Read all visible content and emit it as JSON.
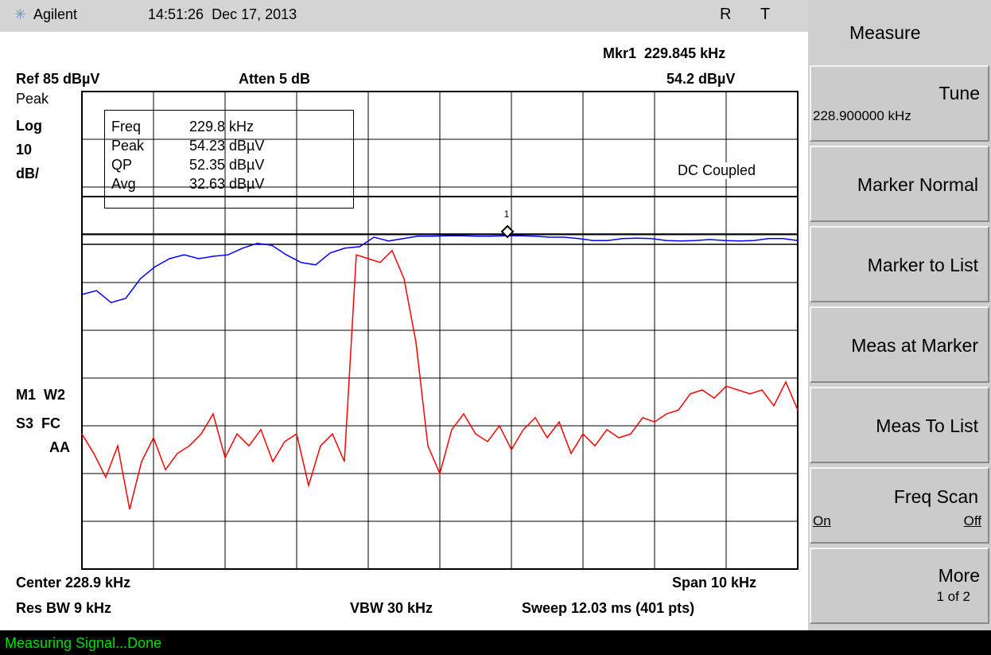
{
  "header": {
    "brand": "Agilent",
    "datetime": "14:51:26  Dec 17, 2013",
    "flag_r": "R",
    "flag_t": "T"
  },
  "annotations": {
    "marker": "Mkr1  229.845 kHz",
    "marker_level": "54.2 dBµV",
    "ref": "Ref 85 dBµV",
    "atten": "Atten 5 dB",
    "left": [
      "Peak",
      "Log",
      "10",
      "dB/"
    ],
    "left_lower": [
      "M1  W2",
      "S3  FC",
      "AA"
    ],
    "coupling": "DC Coupled",
    "marker_number": "1"
  },
  "readout": {
    "rows": [
      [
        "Freq",
        "229.8 kHz"
      ],
      [
        "Peak",
        "54.23 dBµV"
      ],
      [
        "QP",
        "52.35 dBµV"
      ],
      [
        "Avg",
        "32.63 dBµV"
      ]
    ]
  },
  "footer": {
    "center": "Center 228.9 kHz",
    "span": "Span 10 kHz",
    "rbw": "Res BW 9 kHz",
    "vbw": "VBW 30 kHz",
    "sweep": "Sweep 12.03 ms (401 pts)"
  },
  "status": "Measuring Signal...Done",
  "softkeys": {
    "title": "Measure",
    "keys": [
      {
        "label": "Tune",
        "sub": "228.900000 kHz"
      },
      {
        "label": "Marker Normal"
      },
      {
        "label": "Marker to List"
      },
      {
        "label": "Meas at Marker"
      },
      {
        "label": "Meas To List"
      },
      {
        "label": "Freq Scan",
        "on": "On",
        "off": "Off"
      },
      {
        "label": "More",
        "sub": "1 of 2"
      }
    ]
  },
  "traces": {
    "ylim": [
      -15,
      85
    ],
    "series": [
      {
        "color": "#0000ff",
        "values": [
          42.5,
          43.3,
          40.8,
          41.7,
          45.8,
          48.3,
          50,
          50.8,
          50,
          50.5,
          50.8,
          52.2,
          53.2,
          52.8,
          50.8,
          49.2,
          48.7,
          51.2,
          52.2,
          52.5,
          54.5,
          53.7,
          54.2,
          54.7,
          54.7,
          54.8,
          54.8,
          54.7,
          54.7,
          54.8,
          54.8,
          54.7,
          54.5,
          54.5,
          54.2,
          53.8,
          53.8,
          54.2,
          54.3,
          54.2,
          53.8,
          53.7,
          53.8,
          54,
          53.8,
          53.7,
          53.8,
          54.2,
          54.2,
          53.8
        ]
      },
      {
        "color": "#ff0000",
        "values": [
          13.3,
          9.2,
          4.2,
          10.8,
          -2.5,
          7.5,
          12.5,
          5.8,
          9.2,
          10.8,
          13.3,
          17.5,
          8.3,
          13.3,
          10.8,
          14.2,
          7.5,
          11.7,
          13.3,
          2.5,
          10.8,
          13.3,
          7.5,
          50.8,
          50,
          49.2,
          51.7,
          45.8,
          32.5,
          10.8,
          5,
          14.2,
          17.5,
          13.3,
          11.7,
          15,
          10,
          14.2,
          16.7,
          12.5,
          15.8,
          9.2,
          13.3,
          10.8,
          14.2,
          12.5,
          13.3,
          16.7,
          15.8,
          17.5,
          18.3,
          21.7,
          22.5,
          20.8,
          23.3,
          22.5,
          21.7,
          22.5,
          19.2,
          24.2,
          18.3
        ]
      }
    ]
  }
}
